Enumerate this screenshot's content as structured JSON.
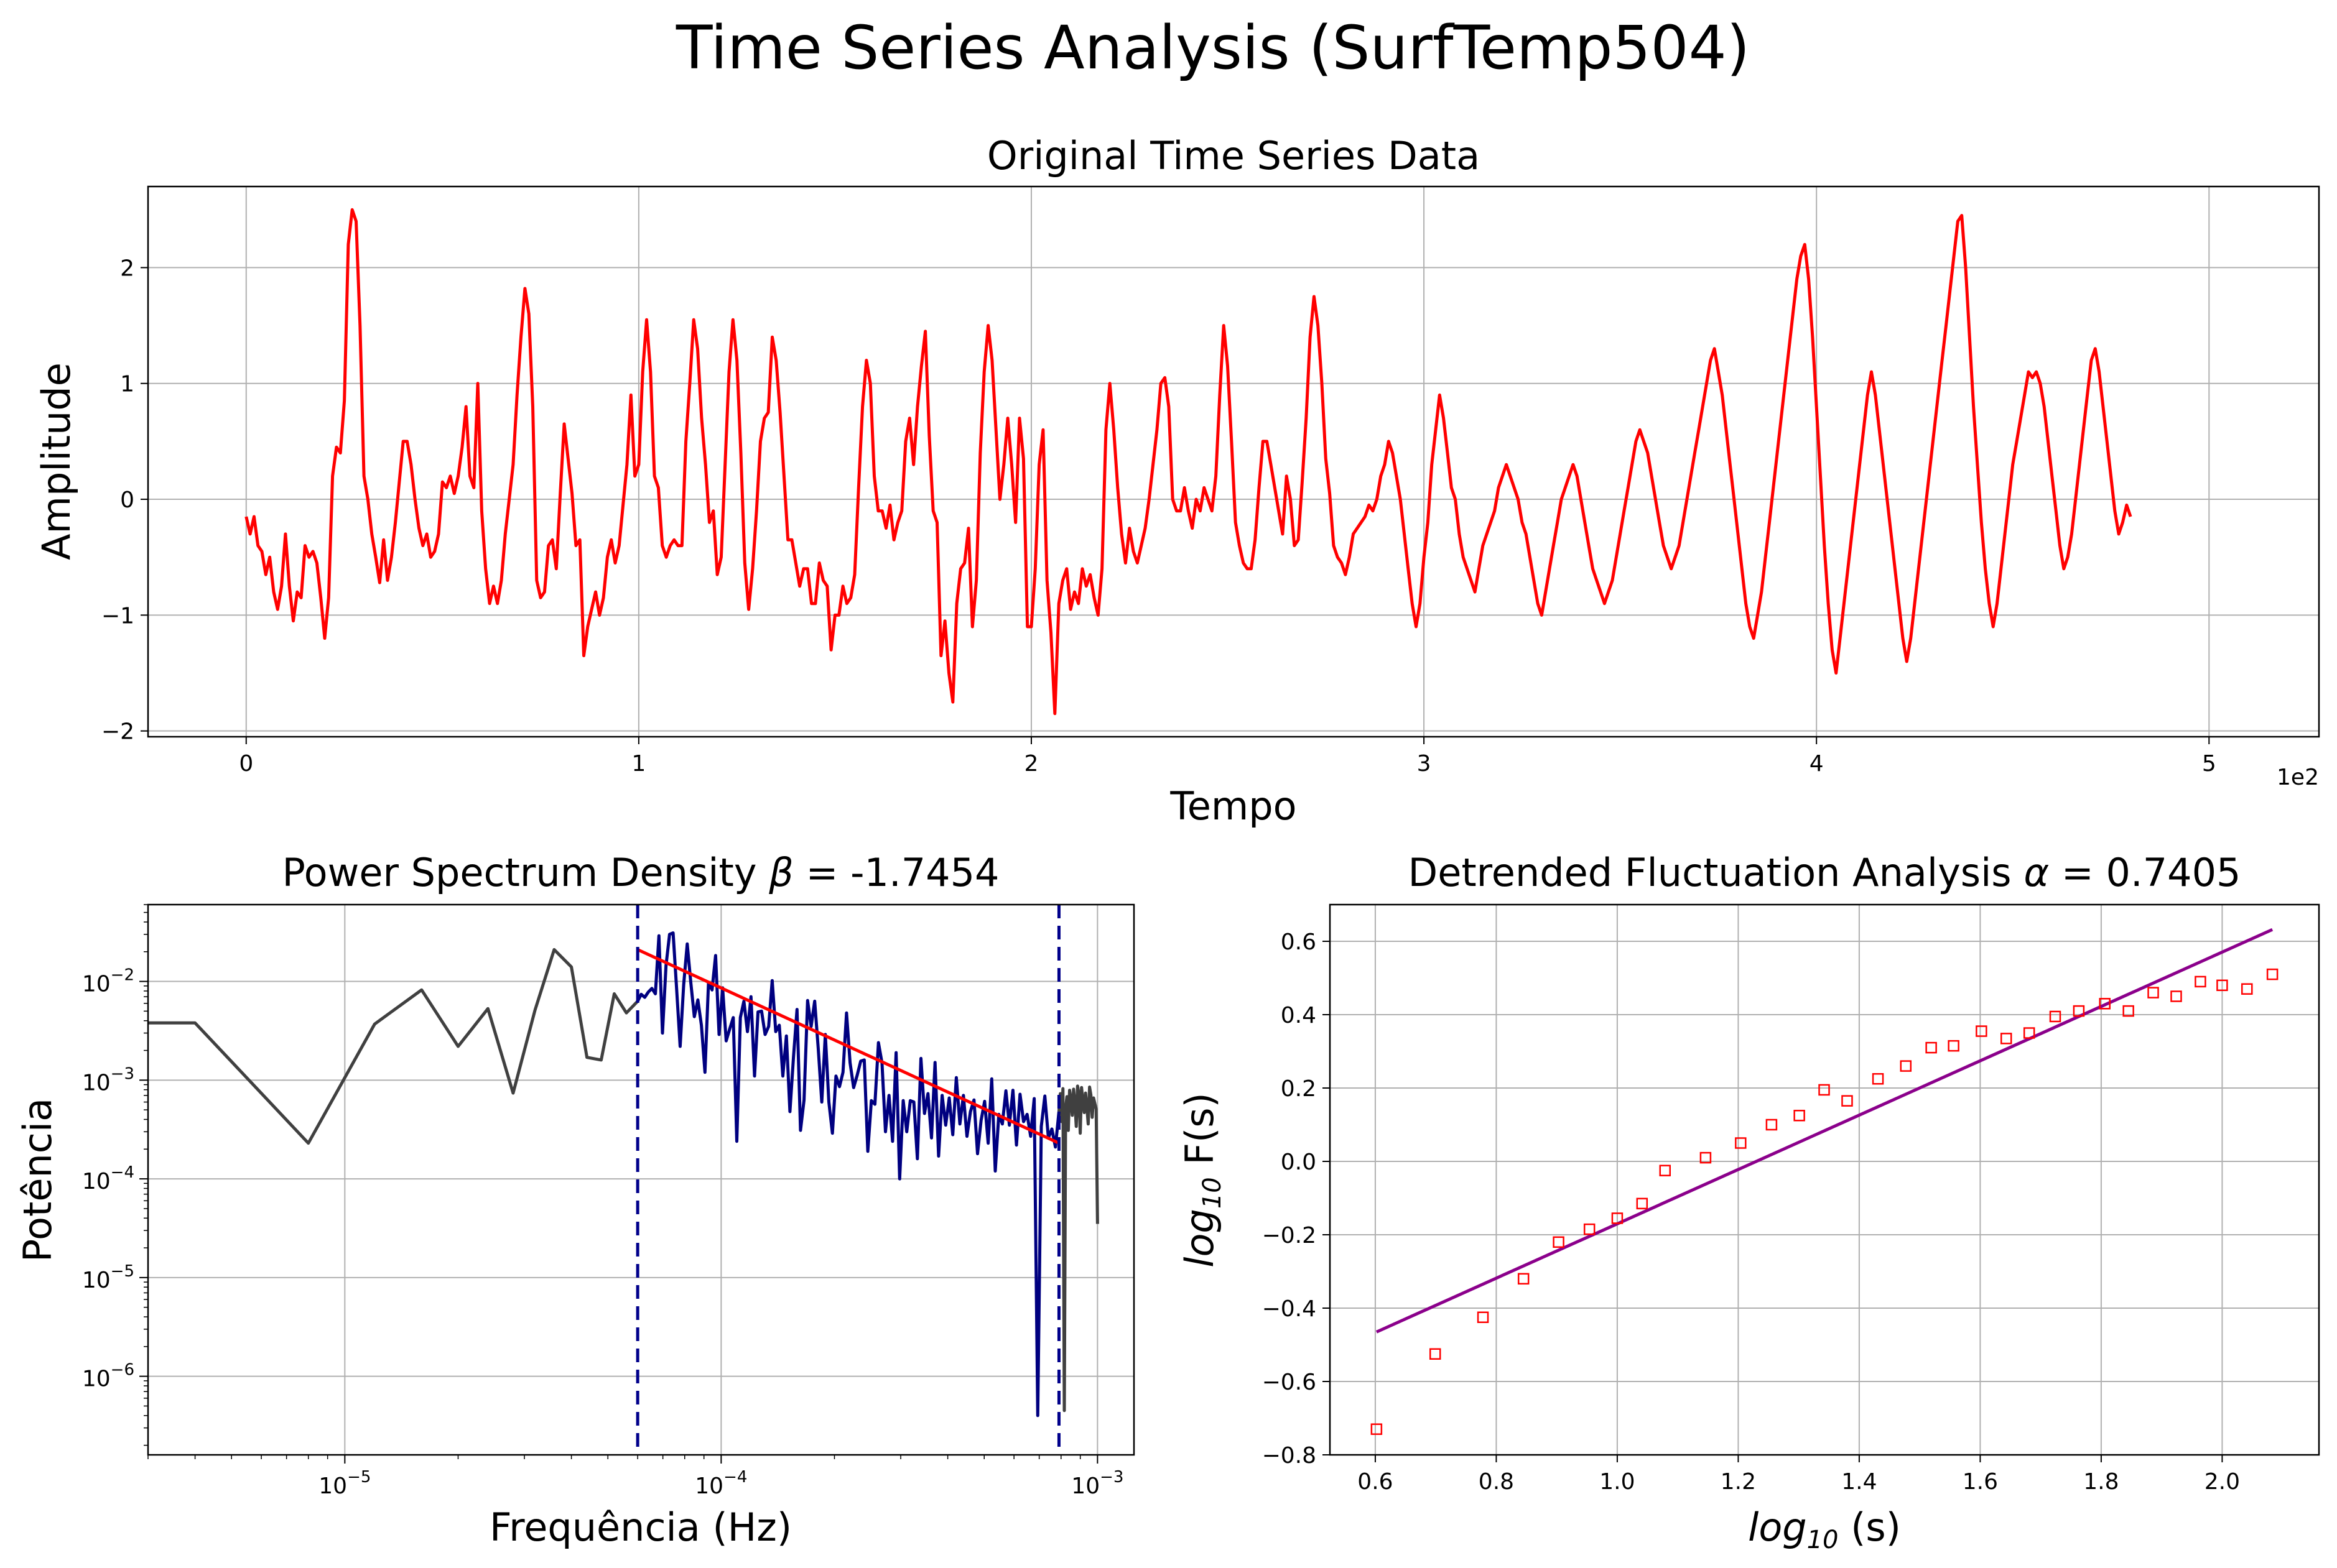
{
  "suptitle": "Time Series Analysis (SurfTemp504)",
  "colors": {
    "series": "#ff0000",
    "psd_full": "#404040",
    "psd_fit_region": "#000080",
    "psd_fit_line": "#ff0000",
    "cutoff_lines": "#00008b",
    "dfa_points": "#ff0000",
    "dfa_fit": "#8b008b",
    "grid": "#b0b0b0"
  },
  "chart_data": [
    {
      "id": "timeseries",
      "type": "line",
      "title": "Original Time Series Data",
      "xlabel": "Tempo",
      "ylabel": "Amplitude",
      "x_offset_label": "1e2",
      "xlim": [
        -25,
        528
      ],
      "ylim": [
        -2.05,
        2.7
      ],
      "xticks": [
        0,
        100,
        200,
        300,
        400,
        500
      ],
      "xtick_labels": [
        "0",
        "1",
        "2",
        "3",
        "4",
        "5"
      ],
      "yticks": [
        -2,
        -1,
        0,
        1,
        2
      ],
      "ytick_labels": [
        "−2",
        "−1",
        "0",
        "1",
        "2"
      ],
      "grid": true,
      "series": [
        {
          "x_start": 0,
          "x_step": 1,
          "values": [
            -0.15,
            -0.3,
            -0.15,
            -0.4,
            -0.45,
            -0.65,
            -0.5,
            -0.8,
            -0.95,
            -0.75,
            -0.3,
            -0.75,
            -1.05,
            -0.8,
            -0.85,
            -0.4,
            -0.5,
            -0.45,
            -0.55,
            -0.85,
            -1.2,
            -0.85,
            0.2,
            0.45,
            0.4,
            0.85,
            2.2,
            2.5,
            2.4,
            1.5,
            0.2,
            0.0,
            -0.3,
            -0.5,
            -0.72,
            -0.35,
            -0.7,
            -0.5,
            -0.2,
            0.15,
            0.5,
            0.5,
            0.3,
            0.0,
            -0.25,
            -0.4,
            -0.3,
            -0.5,
            -0.45,
            -0.3,
            0.15,
            0.1,
            0.2,
            0.05,
            0.2,
            0.45,
            0.8,
            0.2,
            0.1,
            1.0,
            -0.1,
            -0.6,
            -0.9,
            -0.75,
            -0.9,
            -0.7,
            -0.3,
            0.0,
            0.3,
            0.9,
            1.4,
            1.82,
            1.6,
            0.8,
            -0.7,
            -0.85,
            -0.8,
            -0.4,
            -0.35,
            -0.6,
            0.05,
            0.65,
            0.35,
            0.05,
            -0.4,
            -0.35,
            -1.35,
            -1.1,
            -0.95,
            -0.8,
            -1.0,
            -0.85,
            -0.5,
            -0.35,
            -0.55,
            -0.4,
            -0.05,
            0.3,
            0.9,
            0.2,
            0.3,
            1.1,
            1.55,
            1.1,
            0.2,
            0.1,
            -0.4,
            -0.5,
            -0.4,
            -0.35,
            -0.4,
            -0.4,
            0.5,
            1.0,
            1.55,
            1.3,
            0.7,
            0.3,
            -0.2,
            -0.1,
            -0.65,
            -0.5,
            0.3,
            1.1,
            1.55,
            1.2,
            0.4,
            -0.55,
            -0.95,
            -0.6,
            -0.1,
            0.5,
            0.7,
            0.75,
            1.4,
            1.2,
            0.75,
            0.2,
            -0.35,
            -0.35,
            -0.55,
            -0.75,
            -0.6,
            -0.6,
            -0.9,
            -0.9,
            -0.55,
            -0.7,
            -0.75,
            -1.3,
            -1.0,
            -1.0,
            -0.75,
            -0.9,
            -0.85,
            -0.65,
            0.1,
            0.8,
            1.2,
            1.0,
            0.2,
            -0.1,
            -0.1,
            -0.25,
            -0.05,
            -0.35,
            -0.2,
            -0.1,
            0.5,
            0.7,
            0.3,
            0.8,
            1.15,
            1.45,
            0.55,
            -0.1,
            -0.2,
            -1.35,
            -1.05,
            -1.5,
            -1.75,
            -0.9,
            -0.6,
            -0.55,
            -0.25,
            -1.1,
            -0.7,
            0.4,
            1.1,
            1.5,
            1.2,
            0.6,
            0.0,
            0.3,
            0.7,
            0.3,
            -0.2,
            0.7,
            0.35,
            -1.1,
            -1.1,
            -0.6,
            0.3,
            0.6,
            -0.7,
            -1.15,
            -1.85,
            -0.9,
            -0.7,
            -0.6,
            -0.95,
            -0.8,
            -0.9,
            -0.6,
            -0.75,
            -0.65,
            -0.85,
            -1.0,
            -0.6,
            0.6,
            1.0,
            0.6,
            0.1,
            -0.3,
            -0.55,
            -0.25,
            -0.45,
            -0.55,
            -0.4,
            -0.25,
            0.0,
            0.3,
            0.6,
            1.0,
            1.05,
            0.8,
            0.0,
            -0.1,
            -0.1,
            0.1,
            -0.1,
            -0.25,
            0.0,
            -0.1,
            0.1,
            0.0,
            -0.1,
            0.2,
            0.9,
            1.5,
            1.15,
            0.5,
            -0.2,
            -0.4,
            -0.55,
            -0.6,
            -0.6,
            -0.35,
            0.1,
            0.5,
            0.5,
            0.3,
            0.1,
            -0.1,
            -0.3,
            0.2,
            0.0,
            -0.4,
            -0.35,
            0.15,
            0.7,
            1.4,
            1.75,
            1.5,
            1.0,
            0.35,
            0.05,
            -0.4,
            -0.5,
            -0.55,
            -0.65,
            -0.5,
            -0.3,
            -0.25,
            -0.2,
            -0.15,
            -0.05,
            -0.1,
            0.0,
            0.2,
            0.3,
            0.5,
            0.4,
            0.2,
            0.0,
            -0.3,
            -0.6,
            -0.9,
            -1.1,
            -0.9,
            -0.5,
            -0.2,
            0.3,
            0.6,
            0.9,
            0.7,
            0.4,
            0.1,
            0.0,
            -0.3,
            -0.5,
            -0.6,
            -0.7,
            -0.8,
            -0.6,
            -0.4,
            -0.3,
            -0.2,
            -0.1,
            0.1,
            0.2,
            0.3,
            0.2,
            0.1,
            0.0,
            -0.2,
            -0.3,
            -0.5,
            -0.7,
            -0.9,
            -1.0,
            -0.8,
            -0.6,
            -0.4,
            -0.2,
            0.0,
            0.1,
            0.2,
            0.3,
            0.2,
            0.0,
            -0.2,
            -0.4,
            -0.6,
            -0.7,
            -0.8,
            -0.9,
            -0.8,
            -0.7,
            -0.5,
            -0.3,
            -0.1,
            0.1,
            0.3,
            0.5,
            0.6,
            0.5,
            0.4,
            0.2,
            0.0,
            -0.2,
            -0.4,
            -0.5,
            -0.6,
            -0.5,
            -0.4,
            -0.2,
            0.0,
            0.2,
            0.4,
            0.6,
            0.8,
            1.0,
            1.2,
            1.3,
            1.1,
            0.9,
            0.6,
            0.3,
            0.0,
            -0.3,
            -0.6,
            -0.9,
            -1.1,
            -1.2,
            -1.0,
            -0.8,
            -0.5,
            -0.2,
            0.1,
            0.4,
            0.7,
            1.0,
            1.3,
            1.6,
            1.9,
            2.1,
            2.2,
            1.9,
            1.4,
            0.8,
            0.2,
            -0.4,
            -0.9,
            -1.3,
            -1.5,
            -1.2,
            -0.9,
            -0.6,
            -0.3,
            0.0,
            0.3,
            0.6,
            0.9,
            1.1,
            0.9,
            0.6,
            0.3,
            0.0,
            -0.3,
            -0.6,
            -0.9,
            -1.2,
            -1.4,
            -1.2,
            -0.9,
            -0.6,
            -0.3,
            0.0,
            0.3,
            0.6,
            0.9,
            1.2,
            1.5,
            1.8,
            2.1,
            2.4,
            2.45,
            2.0,
            1.4,
            0.8,
            0.3,
            -0.2,
            -0.6,
            -0.9,
            -1.1,
            -0.9,
            -0.6,
            -0.3,
            0.0,
            0.3,
            0.5,
            0.7,
            0.9,
            1.1,
            1.05,
            1.1,
            1.0,
            0.8,
            0.5,
            0.2,
            -0.1,
            -0.4,
            -0.6,
            -0.5,
            -0.3,
            0.0,
            0.3,
            0.6,
            0.9,
            1.2,
            1.3,
            1.1,
            0.8,
            0.5,
            0.2,
            -0.1,
            -0.3,
            -0.2,
            -0.05,
            -0.15
          ]
        }
      ]
    },
    {
      "id": "psd",
      "type": "line",
      "title": "Power Spectrum Density β = -1.7454",
      "title_prefix": "Power Spectrum Density ",
      "title_symbol": "β",
      "title_suffix": " = -1.7454",
      "xlabel": "Frequência (Hz)",
      "ylabel": "Potência",
      "xscale": "log",
      "yscale": "log",
      "xlim": [
        3e-06,
        0.00125
      ],
      "ylim": [
        1.6e-07,
        0.06
      ],
      "xticks": [
        1e-05,
        0.0001,
        0.001
      ],
      "xtick_base": "10",
      "xtick_exponents": [
        "−5",
        "−4",
        "−3"
      ],
      "yticks": [
        1e-06,
        1e-05,
        0.0001,
        0.001,
        0.01
      ],
      "ytick_base": "10",
      "ytick_exponents": [
        "−6",
        "−5",
        "−4",
        "−3",
        "−2"
      ],
      "grid": true,
      "cutoffs": [
        6e-05,
        0.00079
      ],
      "fit_line": {
        "x": [
          6e-05,
          0.00079
        ],
        "y": [
          0.021,
          0.00023
        ]
      },
      "series": [
        {
          "name": "full",
          "x": [
            3e-06,
            4e-06,
            8e-06,
            1.2e-05,
            1.6e-05,
            2e-05,
            2.4e-05,
            2.8e-05,
            3.2e-05,
            3.6e-05,
            4e-05,
            4.4e-05,
            4.8e-05,
            5.2e-05,
            5.6e-05,
            6e-05
          ],
          "y": [
            0.0038,
            0.0038,
            0.00023,
            0.0037,
            0.0082,
            0.0022,
            0.0053,
            0.00074,
            0.0051,
            0.021,
            0.014,
            0.0017,
            0.0016,
            0.0075,
            0.0048,
            0.0063
          ]
        },
        {
          "name": "fit_region",
          "x_range": [
            6e-05,
            0.00079
          ],
          "count": 120,
          "y": [
            0.0063,
            0.0074,
            0.0069,
            0.0078,
            0.0085,
            0.0075,
            0.029,
            0.003,
            0.0145,
            0.03,
            0.031,
            0.0085,
            0.0022,
            0.0093,
            0.024,
            0.0098,
            0.0044,
            0.0065,
            0.0036,
            0.0012,
            0.0097,
            0.0082,
            0.0183,
            0.0029,
            0.0086,
            0.0025,
            0.0033,
            0.0043,
            0.00024,
            0.0043,
            0.0063,
            0.0031,
            0.007,
            0.0011,
            0.0049,
            0.005,
            0.0029,
            0.0035,
            0.0102,
            0.0031,
            0.0036,
            0.0011,
            0.0028,
            0.00048,
            0.0017,
            0.0052,
            0.00031,
            0.00063,
            0.0064,
            0.0035,
            0.0063,
            0.0021,
            0.0006,
            0.0029,
            0.0006,
            0.00029,
            0.0011,
            0.00086,
            0.0012,
            0.0048,
            0.0015,
            0.00084,
            0.00112,
            0.00156,
            0.0016,
            0.00019,
            0.00062,
            0.00057,
            0.0024,
            0.0015,
            0.0003,
            0.0007,
            0.00024,
            0.0019,
            0.0001,
            0.00062,
            0.0003,
            0.00062,
            0.0006,
            0.00016,
            0.00166,
            0.00046,
            0.00073,
            0.00026,
            0.00151,
            0.00017,
            0.0007,
            0.00035,
            0.00066,
            0.00028,
            0.00106,
            0.00036,
            0.0007,
            0.00027,
            0.00048,
            0.00063,
            0.00018,
            0.00039,
            0.00061,
            0.00023,
            0.00103,
            0.00012,
            0.00045,
            0.00036,
            0.00078,
            0.00035,
            0.00079,
            0.00022,
            0.00072,
            0.00038,
            0.00045,
            0.00027,
            0.00065,
            4e-07,
            0.00034,
            0.00069,
            0.00026,
            0.00032,
            0.00021,
            0.00048
          ]
        },
        {
          "name": "tail",
          "x_range": [
            0.00079,
            0.001
          ],
          "count": 30,
          "y": [
            0.00048,
            0.00073,
            0.00038,
            0.00082,
            4.5e-07,
            0.00052,
            0.00068,
            0.00031,
            0.00079,
            0.00065,
            0.00044,
            0.00081,
            0.00058,
            0.00034,
            0.00087,
            0.00072,
            0.00029,
            0.00084,
            0.00061,
            0.00047,
            0.00074,
            0.00053,
            0.00036,
            0.00085,
            0.00071,
            0.00042,
            0.00066,
            0.00058,
            0.00051,
            3.5e-05
          ]
        }
      ]
    },
    {
      "id": "dfa",
      "type": "scatter",
      "title": "Detrended Fluctuation Analysis α = 0.7405",
      "title_prefix": "Detrended Fluctuation Analysis ",
      "title_symbol": "α",
      "title_suffix": " = 0.7405",
      "xlabel_main": "log",
      "xlabel_sub": "10",
      "xlabel_rest": " (s)",
      "ylabel_main": "log",
      "ylabel_sub": "10",
      "ylabel_rest": " F(s)",
      "xlim": [
        0.525,
        2.16
      ],
      "ylim": [
        -0.8,
        0.7
      ],
      "xticks": [
        0.6,
        0.8,
        1.0,
        1.2,
        1.4,
        1.6,
        1.8,
        2.0
      ],
      "xtick_labels": [
        "0.6",
        "0.8",
        "1.0",
        "1.2",
        "1.4",
        "1.6",
        "1.8",
        "2.0"
      ],
      "yticks": [
        -0.8,
        -0.6,
        -0.4,
        -0.2,
        0.0,
        0.2,
        0.4,
        0.6
      ],
      "ytick_labels": [
        "−0.8",
        "−0.6",
        "−0.4",
        "−0.2",
        "0.0",
        "0.2",
        "0.4",
        "0.6"
      ],
      "grid": true,
      "points": {
        "x": [
          0.602,
          0.699,
          0.778,
          0.845,
          0.903,
          0.954,
          1.0,
          1.041,
          1.079,
          1.146,
          1.204,
          1.255,
          1.301,
          1.342,
          1.38,
          1.431,
          1.477,
          1.519,
          1.556,
          1.602,
          1.643,
          1.681,
          1.724,
          1.763,
          1.806,
          1.845,
          1.886,
          1.924,
          1.964,
          2.0,
          2.041,
          2.083
        ],
        "y": [
          -0.73,
          -0.525,
          -0.425,
          -0.32,
          -0.22,
          -0.185,
          -0.155,
          -0.115,
          -0.025,
          0.01,
          0.05,
          0.1,
          0.125,
          0.195,
          0.165,
          0.225,
          0.26,
          0.31,
          0.315,
          0.355,
          0.335,
          0.35,
          0.395,
          0.41,
          0.43,
          0.41,
          0.46,
          0.45,
          0.49,
          0.48,
          0.47,
          0.51
        ]
      },
      "fit_line": {
        "x": [
          0.602,
          2.083
        ],
        "y": [
          -0.465,
          0.632
        ]
      }
    }
  ]
}
